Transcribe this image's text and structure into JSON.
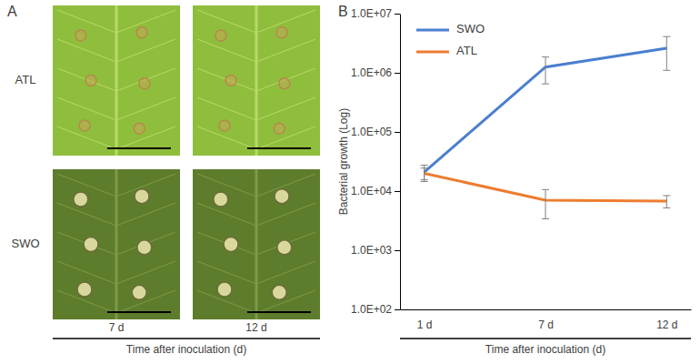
{
  "panel_a": {
    "label": "A",
    "rows": [
      "ATL",
      "SWO"
    ],
    "columns": [
      "7 d",
      "12 d"
    ],
    "axis_label": "Time after inoculation (d)"
  },
  "chart_data": {
    "type": "line",
    "panel_label": "B",
    "categories": [
      "1 d",
      "7 d",
      "12 d"
    ],
    "x_label": "Time after inoculation (d)",
    "y_label": "Bacterial growth (Log)",
    "series": [
      {
        "name": "SWO",
        "color": "#4a7fd0",
        "values": [
          21000,
          1250000,
          2600000
        ],
        "errors": [
          6500,
          600000,
          1500000
        ]
      },
      {
        "name": "ATL",
        "color": "#ed7d31",
        "values": [
          20000,
          7000,
          6800
        ],
        "errors": [
          4500,
          3600,
          1600
        ]
      }
    ],
    "log": "y",
    "ylim": [
      100,
      10000000
    ],
    "yticks": [
      {
        "value": 100,
        "label": "1.0E+02"
      },
      {
        "value": 1000,
        "label": "1.0E+03"
      },
      {
        "value": 10000,
        "label": "1.0E+04"
      },
      {
        "value": 100000,
        "label": "1.0E+05"
      },
      {
        "value": 1000000,
        "label": "1.0E+06"
      },
      {
        "value": 10000000,
        "label": "1.0E+07"
      }
    ],
    "grid": false,
    "legend": "upper left"
  }
}
